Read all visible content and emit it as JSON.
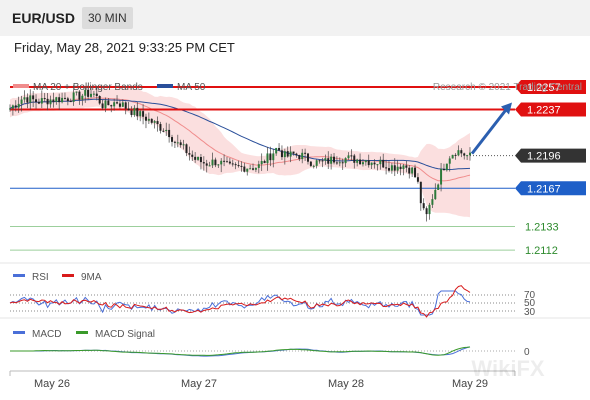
{
  "header": {
    "symbol": "EUR/USD",
    "timeframe": "30 MIN",
    "datetime": "Friday, May 28, 2021 9:33:25 PM CET"
  },
  "chart_data": [
    {
      "type": "candlestick",
      "title": "",
      "legend": [
        {
          "label": "MA 20 + Bollinger Bands",
          "color": "#f08c8c"
        },
        {
          "label": "MA 50",
          "color": "#2a4f9a"
        }
      ],
      "legend_position": "top-left",
      "credit": "Research © 2021 Trading Central",
      "price_levels": [
        {
          "label": "1.2257",
          "value": 1.2257,
          "style": "resistance",
          "color": "#e01010"
        },
        {
          "label": "1.2237",
          "value": 1.2237,
          "style": "resistance",
          "color": "#e01010"
        },
        {
          "label": "1.2196",
          "value": 1.2196,
          "style": "last-price",
          "color": "#333333"
        },
        {
          "label": "1.2167",
          "value": 1.2167,
          "style": "pivot",
          "color": "#1e5fc8"
        },
        {
          "label": "1.2133",
          "value": 1.2133,
          "style": "support",
          "color": "#2e8b2e"
        },
        {
          "label": "1.2112",
          "value": 1.2112,
          "style": "support",
          "color": "#2e8b2e"
        }
      ],
      "close_path": [
        [
          0,
          1.2238
        ],
        [
          10,
          1.2248
        ],
        [
          20,
          1.2244
        ],
        [
          30,
          1.2246
        ],
        [
          40,
          1.2247
        ],
        [
          50,
          1.2249
        ],
        [
          60,
          1.2252
        ],
        [
          68,
          1.224
        ],
        [
          78,
          1.2244
        ],
        [
          88,
          1.2236
        ],
        [
          98,
          1.223
        ],
        [
          108,
          1.2222
        ],
        [
          114,
          1.2219
        ],
        [
          120,
          1.2208
        ],
        [
          128,
          1.22
        ],
        [
          134,
          1.2193
        ],
        [
          142,
          1.2189
        ],
        [
          150,
          1.2191
        ],
        [
          160,
          1.2185
        ],
        [
          170,
          1.2186
        ],
        [
          180,
          1.2186
        ],
        [
          188,
          1.2195
        ],
        [
          194,
          1.2203
        ],
        [
          200,
          1.2195
        ],
        [
          206,
          1.2197
        ],
        [
          212,
          1.2196
        ],
        [
          220,
          1.219
        ],
        [
          228,
          1.219
        ],
        [
          238,
          1.2194
        ],
        [
          248,
          1.2193
        ],
        [
          258,
          1.2192
        ],
        [
          268,
          1.219
        ],
        [
          278,
          1.2186
        ],
        [
          285,
          1.2188
        ],
        [
          292,
          1.2183
        ],
        [
          296,
          1.2172
        ],
        [
          299,
          1.215
        ],
        [
          302,
          1.214
        ],
        [
          306,
          1.2157
        ],
        [
          312,
          1.2178
        ],
        [
          318,
          1.2195
        ],
        [
          324,
          1.2201
        ],
        [
          330,
          1.2197
        ],
        [
          334,
          1.2195
        ]
      ],
      "projection": {
        "from": 1.2196,
        "to": 1.2237
      },
      "ylim": [
        1.2105,
        1.2265
      ],
      "x_labels": [
        "May 26",
        "May 27",
        "May 28",
        "May 29"
      ]
    },
    {
      "type": "line",
      "title": "",
      "series": [
        {
          "name": "RSI",
          "color": "#4a6fd8"
        },
        {
          "name": "9MA",
          "color": "#d81b1b"
        }
      ],
      "y_ticks": [
        "70",
        "50",
        "30"
      ],
      "ylim": [
        15,
        85
      ]
    },
    {
      "type": "line",
      "title": "",
      "series": [
        {
          "name": "MACD",
          "color": "#4a6fd8"
        },
        {
          "name": "MACD Signal",
          "color": "#3a9a2a"
        }
      ],
      "y_ticks": [
        "0"
      ]
    }
  ],
  "watermark": "WikiFX"
}
